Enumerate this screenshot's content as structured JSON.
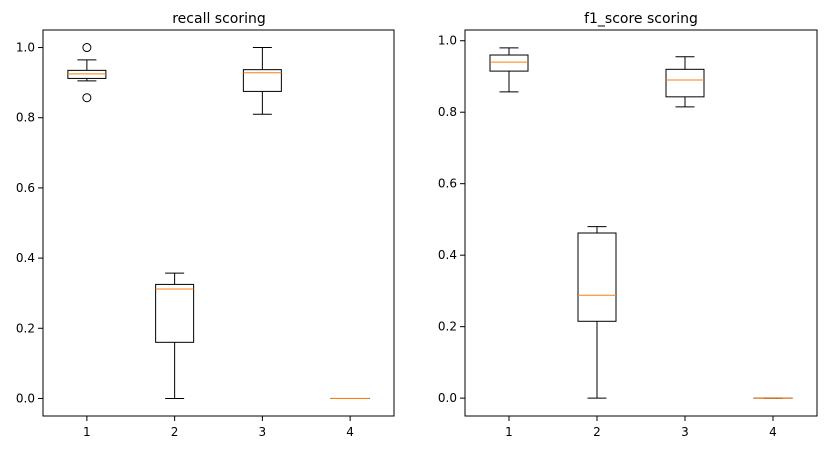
{
  "chart_data": [
    {
      "type": "box",
      "title": "recall scoring",
      "xlabel": "",
      "ylabel": "",
      "categories": [
        "1",
        "2",
        "3",
        "4"
      ],
      "ylim": [
        -0.05,
        1.05
      ],
      "yticks": [
        "0.0",
        "0.2",
        "0.4",
        "0.6",
        "0.8",
        "1.0"
      ],
      "grid": false,
      "boxes": [
        {
          "category": "1",
          "whisker_low": 0.905,
          "q1": 0.912,
          "median": 0.925,
          "q3": 0.935,
          "whisker_high": 0.965,
          "outliers": [
            1.0,
            0.857
          ]
        },
        {
          "category": "2",
          "whisker_low": 0.0,
          "q1": 0.16,
          "median": 0.312,
          "q3": 0.325,
          "whisker_high": 0.357,
          "outliers": []
        },
        {
          "category": "3",
          "whisker_low": 0.81,
          "q1": 0.875,
          "median": 0.928,
          "q3": 0.937,
          "whisker_high": 1.0,
          "outliers": []
        },
        {
          "category": "4",
          "whisker_low": 0.0,
          "q1": 0.0,
          "median": 0.0,
          "q3": 0.0,
          "whisker_high": 0.0,
          "outliers": []
        }
      ]
    },
    {
      "type": "box",
      "title": "f1_score scoring",
      "xlabel": "",
      "ylabel": "",
      "categories": [
        "1",
        "2",
        "3",
        "4"
      ],
      "ylim": [
        -0.05,
        1.03
      ],
      "yticks": [
        "0.0",
        "0.2",
        "0.4",
        "0.6",
        "0.8",
        "1.0"
      ],
      "grid": false,
      "boxes": [
        {
          "category": "1",
          "whisker_low": 0.857,
          "q1": 0.915,
          "median": 0.94,
          "q3": 0.96,
          "whisker_high": 0.98,
          "outliers": []
        },
        {
          "category": "2",
          "whisker_low": 0.0,
          "q1": 0.215,
          "median": 0.288,
          "q3": 0.462,
          "whisker_high": 0.48,
          "outliers": []
        },
        {
          "category": "3",
          "whisker_low": 0.815,
          "q1": 0.843,
          "median": 0.89,
          "q3": 0.92,
          "whisker_high": 0.955,
          "outliers": []
        },
        {
          "category": "4",
          "whisker_low": 0.0,
          "q1": 0.0,
          "median": 0.0,
          "q3": 0.0,
          "whisker_high": 0.0,
          "outliers": []
        }
      ]
    }
  ],
  "colors": {
    "box": "#000000",
    "median": "#ff7f0e",
    "background": "#ffffff"
  }
}
